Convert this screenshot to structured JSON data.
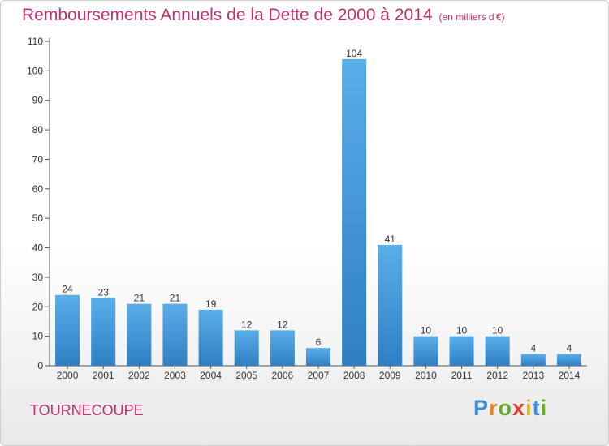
{
  "header": {
    "title": "Remboursements Annuels de la Dette de 2000 à 2014",
    "unit": "(en milliers d'€)"
  },
  "footer": {
    "commune": "TOURNECOUPE",
    "logo_letters": [
      "P",
      "r",
      "o",
      "x",
      "i",
      "t",
      "i"
    ],
    "logo_colors": [
      "#3b8fd6",
      "#e2872b",
      "#6aaa2c",
      "#e23b2e",
      "#f0b022",
      "#3b8fd6",
      "#6aaa2c"
    ]
  },
  "chart_data": {
    "type": "bar",
    "title": "Remboursements Annuels de la Dette de 2000 à 2014",
    "subtitle": "(en milliers d'€)",
    "xlabel": "",
    "ylabel": "",
    "categories": [
      "2000",
      "2001",
      "2002",
      "2003",
      "2004",
      "2005",
      "2006",
      "2007",
      "2008",
      "2009",
      "2010",
      "2011",
      "2012",
      "2013",
      "2014"
    ],
    "values": [
      24,
      23,
      21,
      21,
      19,
      12,
      12,
      6,
      104,
      41,
      10,
      10,
      10,
      4,
      4
    ],
    "ylim": [
      0,
      110
    ],
    "yticks": [
      0,
      10,
      20,
      30,
      40,
      50,
      60,
      70,
      80,
      90,
      100,
      110
    ],
    "grid": false,
    "legend": "none",
    "bar_color": "#3a96dc",
    "bar_color_top": "#5aaee8"
  }
}
